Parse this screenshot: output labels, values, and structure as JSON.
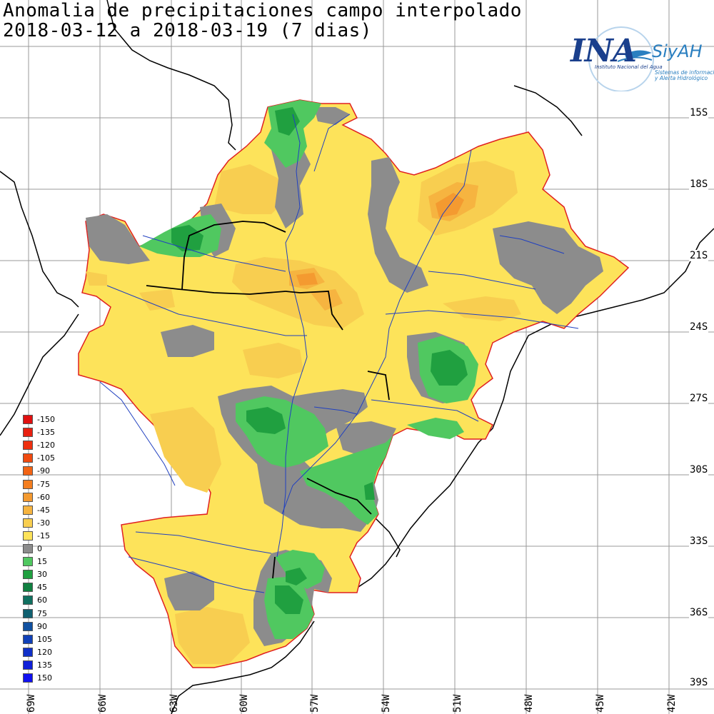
{
  "title_line1": "Anomalia de precipitaciones campo interpolado",
  "title_line2": "2018-03-12 a 2018-03-19 (7 dias)",
  "logo": {
    "name": "INA",
    "product": "SiyAH",
    "institute": "Instituto Nacional del Agua",
    "system_line1": "Sistemas de información",
    "system_line2": "y Alerta Hidrológico"
  },
  "lat_labels": [
    "15S",
    "18S",
    "21S",
    "24S",
    "27S",
    "30S",
    "33S",
    "36S",
    "39S"
  ],
  "lon_labels": [
    "69W",
    "66W",
    "63W",
    "60W",
    "57W",
    "54W",
    "51W",
    "48W",
    "45W",
    "42W"
  ],
  "legend": [
    {
      "label": "-150",
      "color": "#e01010"
    },
    {
      "label": "-135",
      "color": "#e82010"
    },
    {
      "label": "-120",
      "color": "#ee3010"
    },
    {
      "label": "-105",
      "color": "#f04a10"
    },
    {
      "label": "-90",
      "color": "#f26414"
    },
    {
      "label": "-75",
      "color": "#f47e20"
    },
    {
      "label": "-60",
      "color": "#f49a30"
    },
    {
      "label": "-45",
      "color": "#f6b440"
    },
    {
      "label": "-30",
      "color": "#f8ce50"
    },
    {
      "label": "-15",
      "color": "#fde35a"
    },
    {
      "label": "0",
      "color": "#8c8c8c"
    },
    {
      "label": "15",
      "color": "#50c860"
    },
    {
      "label": "30",
      "color": "#20a040"
    },
    {
      "label": "45",
      "color": "#108040"
    },
    {
      "label": "60",
      "color": "#107060"
    },
    {
      "label": "75",
      "color": "#106070"
    },
    {
      "label": "90",
      "color": "#1050a0"
    },
    {
      "label": "105",
      "color": "#1040b8"
    },
    {
      "label": "120",
      "color": "#1030c8"
    },
    {
      "label": "135",
      "color": "#1020d8"
    },
    {
      "label": "150",
      "color": "#1010f0"
    }
  ]
}
